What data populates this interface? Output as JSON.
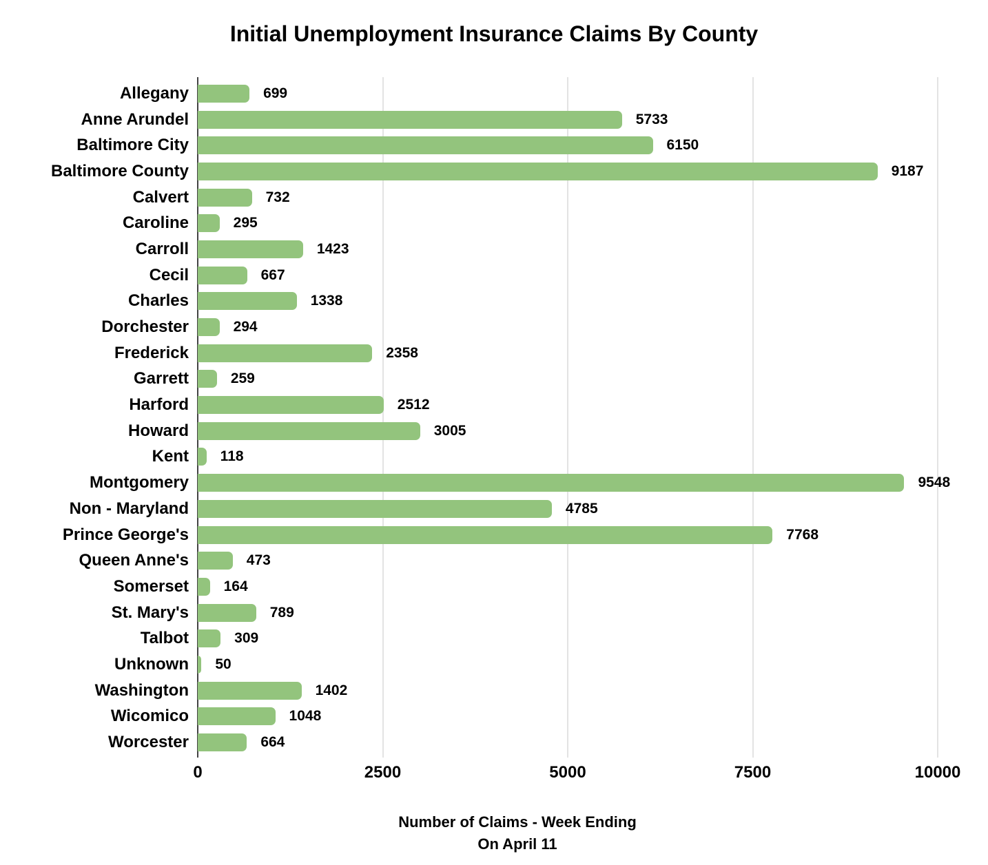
{
  "chart_data": {
    "type": "bar",
    "orientation": "horizontal",
    "title": "Initial Unemployment Insurance Claims By County",
    "categories": [
      "Allegany",
      "Anne Arundel",
      "Baltimore City",
      "Baltimore County",
      "Calvert",
      "Caroline",
      "Carroll",
      "Cecil",
      "Charles",
      "Dorchester",
      "Frederick",
      "Garrett",
      "Harford",
      "Howard",
      "Kent",
      "Montgomery",
      "Non - Maryland",
      "Prince George's",
      "Queen Anne's",
      "Somerset",
      "St. Mary's",
      "Talbot",
      "Unknown",
      "Washington",
      "Wicomico",
      "Worcester"
    ],
    "values": [
      699,
      5733,
      6150,
      9187,
      732,
      295,
      1423,
      667,
      1338,
      294,
      2358,
      259,
      2512,
      3005,
      118,
      9548,
      4785,
      7768,
      473,
      164,
      789,
      309,
      50,
      1402,
      1048,
      664
    ],
    "value_labels_shown": true,
    "xlabel_lines": [
      "Number of Claims - Week Ending",
      "On April 11"
    ],
    "ylabel": "",
    "xlim": [
      0,
      10000
    ],
    "x_ticks": [
      0,
      2500,
      5000,
      7500,
      10000
    ],
    "x_tick_labels": [
      "0",
      "2500",
      "5000",
      "7500",
      "10000"
    ],
    "grid": true,
    "legend": false
  },
  "colors": {
    "bar": "#93c47d",
    "gridline": "#e3e3e3",
    "axis_line": "#424242",
    "text": "#000000",
    "background": "#ffffff"
  }
}
